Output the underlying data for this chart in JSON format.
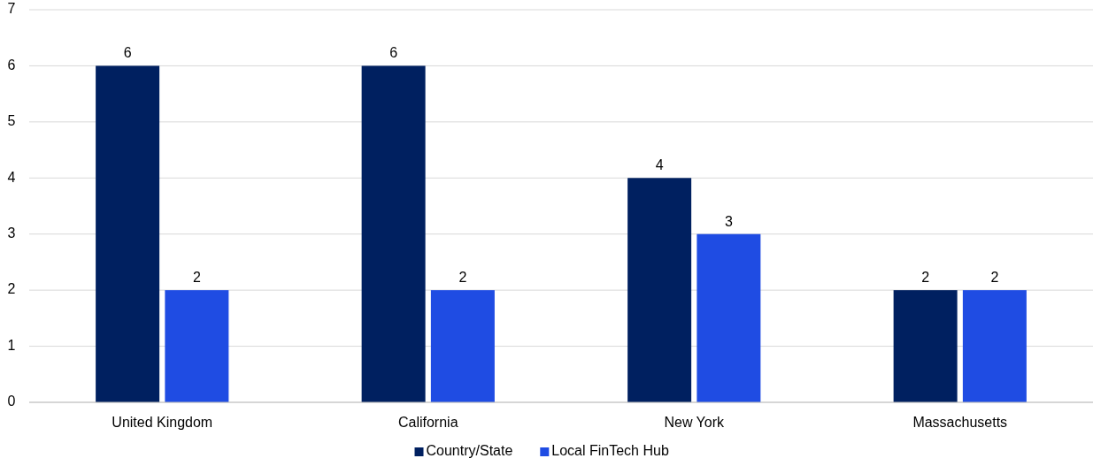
{
  "chart_data": {
    "type": "bar",
    "categories": [
      "United Kingdom",
      "California",
      "New York",
      "Massachusetts"
    ],
    "series": [
      {
        "name": "Country/State",
        "color": "#002060",
        "values": [
          6,
          6,
          4,
          2
        ]
      },
      {
        "name": "Local FinTech Hub",
        "color": "#1f4ce3",
        "values": [
          2,
          2,
          3,
          2
        ]
      }
    ],
    "ylim": [
      0,
      7
    ],
    "yticks": [
      0,
      1,
      2,
      3,
      4,
      5,
      6,
      7
    ],
    "grid": "y",
    "legend": "bottom",
    "data_labels": true
  }
}
